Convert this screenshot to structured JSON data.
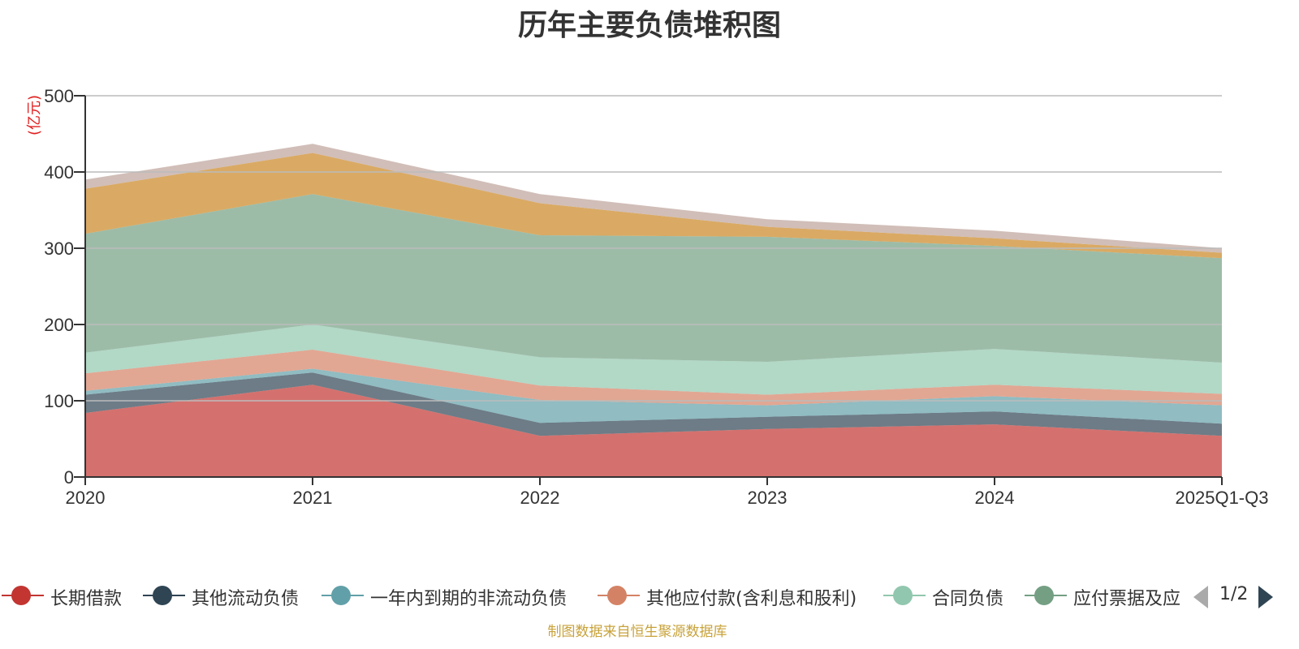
{
  "chart_data": {
    "type": "area",
    "stacked": true,
    "title": "历年主要负债堆积图",
    "ylabel": "(亿元)",
    "ylim": [
      0,
      500
    ],
    "yticks": [
      0,
      100,
      200,
      300,
      400,
      500
    ],
    "categories": [
      "2020",
      "2021",
      "2022",
      "2023",
      "2024",
      "2025Q1-Q3"
    ],
    "grid": true,
    "legend_position": "bottom",
    "series": [
      {
        "name": "长期借款",
        "color": "#c23531",
        "values": [
          84,
          121,
          54,
          63,
          69,
          54
        ]
      },
      {
        "name": "其他流动负债",
        "color": "#2f4554",
        "values": [
          24,
          16,
          17,
          16,
          17,
          16
        ]
      },
      {
        "name": "一年内到期的非流动负债",
        "color": "#61a0a8",
        "values": [
          5,
          5,
          30,
          15,
          20,
          24
        ]
      },
      {
        "name": "其他应付款(含利息和股利)",
        "color": "#d48265",
        "values": [
          23,
          25,
          19,
          14,
          15,
          15
        ]
      },
      {
        "name": "合同负债",
        "color": "#91c7ae",
        "values": [
          27,
          33,
          37,
          43,
          47,
          41
        ]
      },
      {
        "name": "应付票据及应付账款",
        "color": "#749f83",
        "values": [
          156,
          171,
          160,
          164,
          135,
          137
        ]
      },
      {
        "name": "",
        "color": "#ca8622",
        "values": [
          59,
          54,
          42,
          13,
          10,
          7
        ]
      },
      {
        "name": "",
        "color": "#bda29a",
        "values": [
          12,
          12,
          12,
          10,
          10,
          6
        ]
      }
    ]
  },
  "legend": {
    "items": [
      {
        "label": "长期借款",
        "color": "#c23531"
      },
      {
        "label": "其他流动负债",
        "color": "#2f4554"
      },
      {
        "label": "一年内到期的非流动负债",
        "color": "#61a0a8"
      },
      {
        "label": "其他应付款(含利息和股利)",
        "color": "#d48265"
      },
      {
        "label": "合同负债",
        "color": "#91c7ae"
      },
      {
        "label": "应付票据及应",
        "color": "#749f83"
      }
    ],
    "page": "1/2"
  },
  "source": "制图数据来自恒生聚源数据库"
}
